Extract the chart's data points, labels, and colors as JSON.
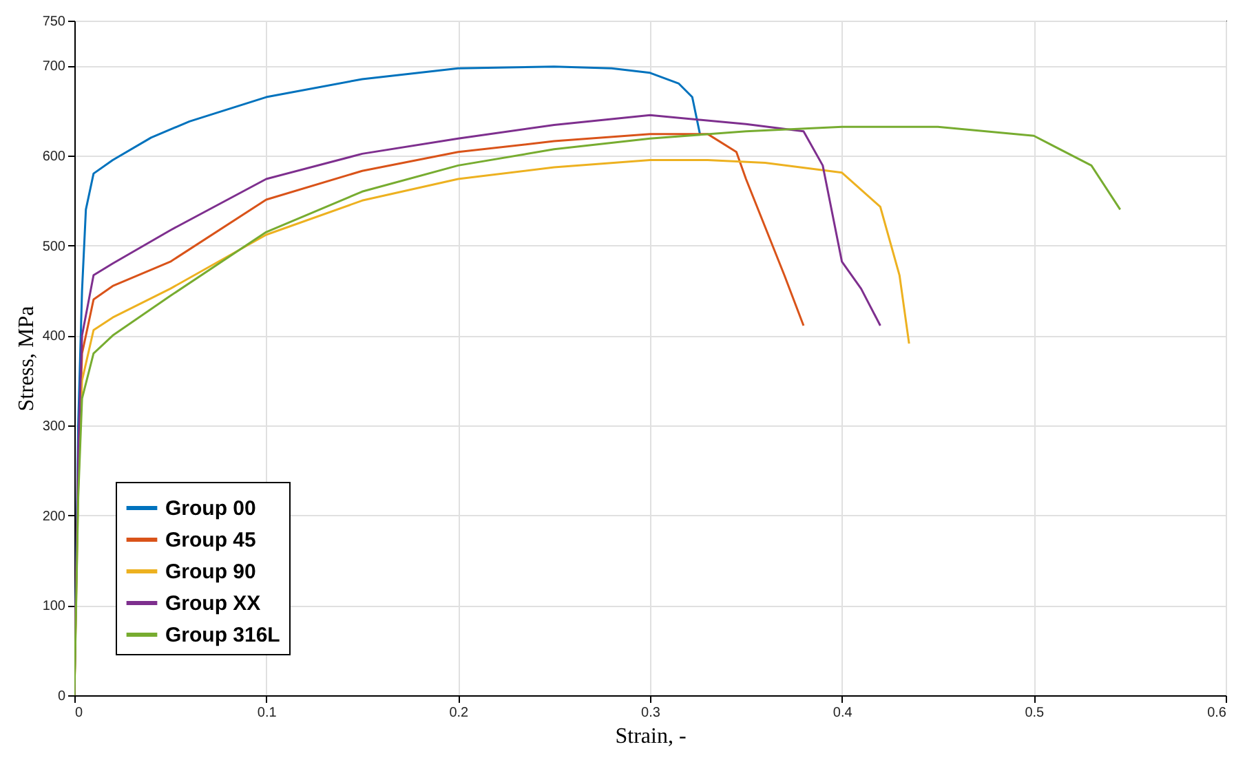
{
  "chart_data": {
    "type": "line",
    "xlabel": "Strain, -",
    "ylabel": "Stress, MPa",
    "xlim": [
      0,
      0.6
    ],
    "xticks": [
      0,
      0.1,
      0.2,
      0.3,
      0.4,
      0.5,
      0.6
    ],
    "ylim": [
      0,
      750
    ],
    "yticks": [
      0,
      100,
      200,
      300,
      400,
      500,
      600,
      700,
      750
    ],
    "grid": true,
    "legend": "bottom left",
    "line_style": "solid",
    "series": [
      {
        "name": "Group 00",
        "color": "#0072bd",
        "x": [
          0,
          0.002,
          0.004,
          0.006,
          0.01,
          0.02,
          0.04,
          0.06,
          0.1,
          0.15,
          0.2,
          0.25,
          0.28,
          0.3,
          0.315,
          0.322,
          0.326
        ],
        "values": [
          0,
          300,
          450,
          540,
          580,
          595,
          620,
          638,
          665,
          685,
          697,
          699,
          697,
          692,
          680,
          665,
          624
        ]
      },
      {
        "name": "Group 45",
        "color": "#d95319",
        "x": [
          0,
          0.002,
          0.004,
          0.01,
          0.02,
          0.05,
          0.1,
          0.15,
          0.2,
          0.25,
          0.3,
          0.33,
          0.345,
          0.35,
          0.37,
          0.38
        ],
        "values": [
          0,
          250,
          380,
          440,
          455,
          482,
          551,
          583,
          604,
          616,
          624,
          624,
          604,
          574,
          467,
          411
        ]
      },
      {
        "name": "Group 90",
        "color": "#edb120",
        "x": [
          0,
          0.002,
          0.004,
          0.01,
          0.02,
          0.05,
          0.1,
          0.15,
          0.2,
          0.25,
          0.3,
          0.33,
          0.36,
          0.4,
          0.42,
          0.43,
          0.435
        ],
        "values": [
          0,
          230,
          350,
          406,
          420,
          452,
          512,
          550,
          574,
          587,
          595,
          595,
          592,
          581,
          543,
          467,
          391
        ]
      },
      {
        "name": "Group XX",
        "color": "#7e2f8e",
        "x": [
          0,
          0.002,
          0.004,
          0.01,
          0.02,
          0.05,
          0.1,
          0.15,
          0.2,
          0.25,
          0.3,
          0.35,
          0.38,
          0.39,
          0.4,
          0.41,
          0.42
        ],
        "values": [
          0,
          270,
          400,
          467,
          480,
          517,
          574,
          602,
          619,
          634,
          645,
          635,
          627,
          589,
          482,
          452,
          411
        ]
      },
      {
        "name": "Group 316L",
        "color": "#77ac30",
        "x": [
          0,
          0.002,
          0.004,
          0.01,
          0.02,
          0.05,
          0.1,
          0.15,
          0.2,
          0.25,
          0.3,
          0.35,
          0.4,
          0.45,
          0.5,
          0.53,
          0.545
        ],
        "values": [
          0,
          220,
          330,
          380,
          400,
          444,
          515,
          560,
          589,
          607,
          619,
          627,
          632,
          632,
          622,
          589,
          540
        ]
      }
    ]
  }
}
